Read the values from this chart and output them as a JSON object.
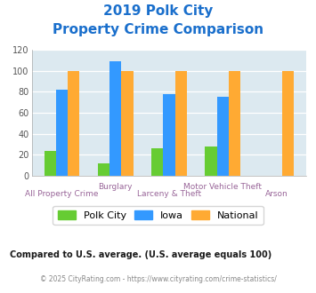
{
  "title_line1": "2019 Polk City",
  "title_line2": "Property Crime Comparison",
  "polk_city_values": [
    24,
    12,
    26,
    28,
    0
  ],
  "iowa_values": [
    82,
    109,
    78,
    75,
    0
  ],
  "national_values": [
    100,
    100,
    100,
    100,
    100
  ],
  "colors": {
    "polk_city": "#66cc33",
    "iowa": "#3399ff",
    "national": "#ffaa33"
  },
  "ylim": [
    0,
    120
  ],
  "yticks": [
    0,
    20,
    40,
    60,
    80,
    100,
    120
  ],
  "background_color": "#dce9f0",
  "title_color": "#1a6fcc",
  "xlabel_color_top": "#996699",
  "xlabel_color_bot": "#996699",
  "footer_text": "Compared to U.S. average. (U.S. average equals 100)",
  "footer_color": "#1a1a1a",
  "copyright_text": "© 2025 CityRating.com - https://www.cityrating.com/crime-statistics/",
  "copyright_color": "#888888",
  "legend_labels": [
    "Polk City",
    "Iowa",
    "National"
  ],
  "bar_width": 0.22,
  "n_groups": 5,
  "top_row_labels": [
    {
      "text": "Burglary",
      "group_idx": 1
    },
    {
      "text": "Motor Vehicle Theft",
      "group_idx": 3
    }
  ],
  "bottom_row_labels": [
    {
      "text": "All Property Crime",
      "group_idx": 0
    },
    {
      "text": "Larceny & Theft",
      "group_idx": 2
    },
    {
      "text": "Arson",
      "group_idx": 4
    }
  ]
}
